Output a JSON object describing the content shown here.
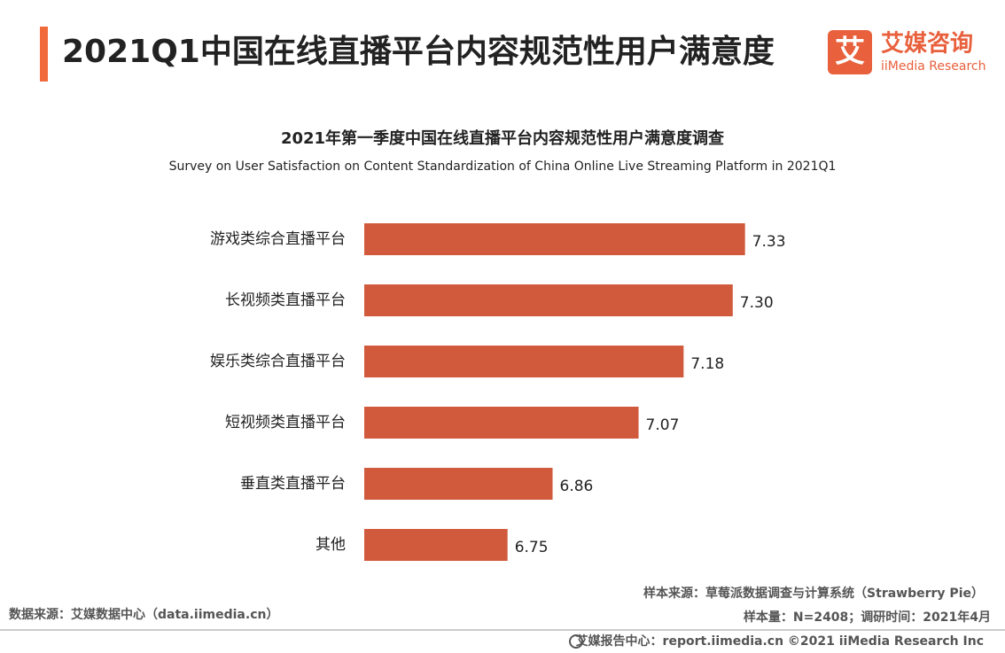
{
  "header": {
    "title": "2021Q1中国在线直播平台内容规范性用户满意度",
    "logo_icon": "艾",
    "logo_name": "艾媒咨询",
    "logo_sub": "iiMedia Research"
  },
  "chart_data": {
    "type": "bar",
    "orientation": "horizontal",
    "title": "2021年第一季度中国在线直播平台内容规范性用户满意度调查",
    "subtitle": "Survey on User Satisfaction on Content Standardization of China Online Live Streaming Platform in 2021Q1",
    "categories": [
      "游戏类综合直播平台",
      "长视频类直播平台",
      "娱乐类综合直播平台",
      "短视频类直播平台",
      "垂直类直播平台",
      "其他"
    ],
    "values": [
      7.33,
      7.3,
      7.18,
      7.07,
      6.86,
      6.75
    ],
    "value_labels": [
      "7.33",
      "7.30",
      "7.18",
      "7.07",
      "6.86",
      "6.75"
    ],
    "color": "#d15a3c",
    "xlim": [
      6.4,
      7.4
    ]
  },
  "footer": {
    "sample_source": "样本来源：草莓派数据调查与计算系统（Strawberry Pie）",
    "data_source": "数据来源：艾媒数据中心（data.iimedia.cn）",
    "sample_info": "样本量：N=2408；调研时间：2021年4月",
    "copyright": "艾媒报告中心：report.iimedia.cn ©2021  iiMedia Research  Inc"
  }
}
